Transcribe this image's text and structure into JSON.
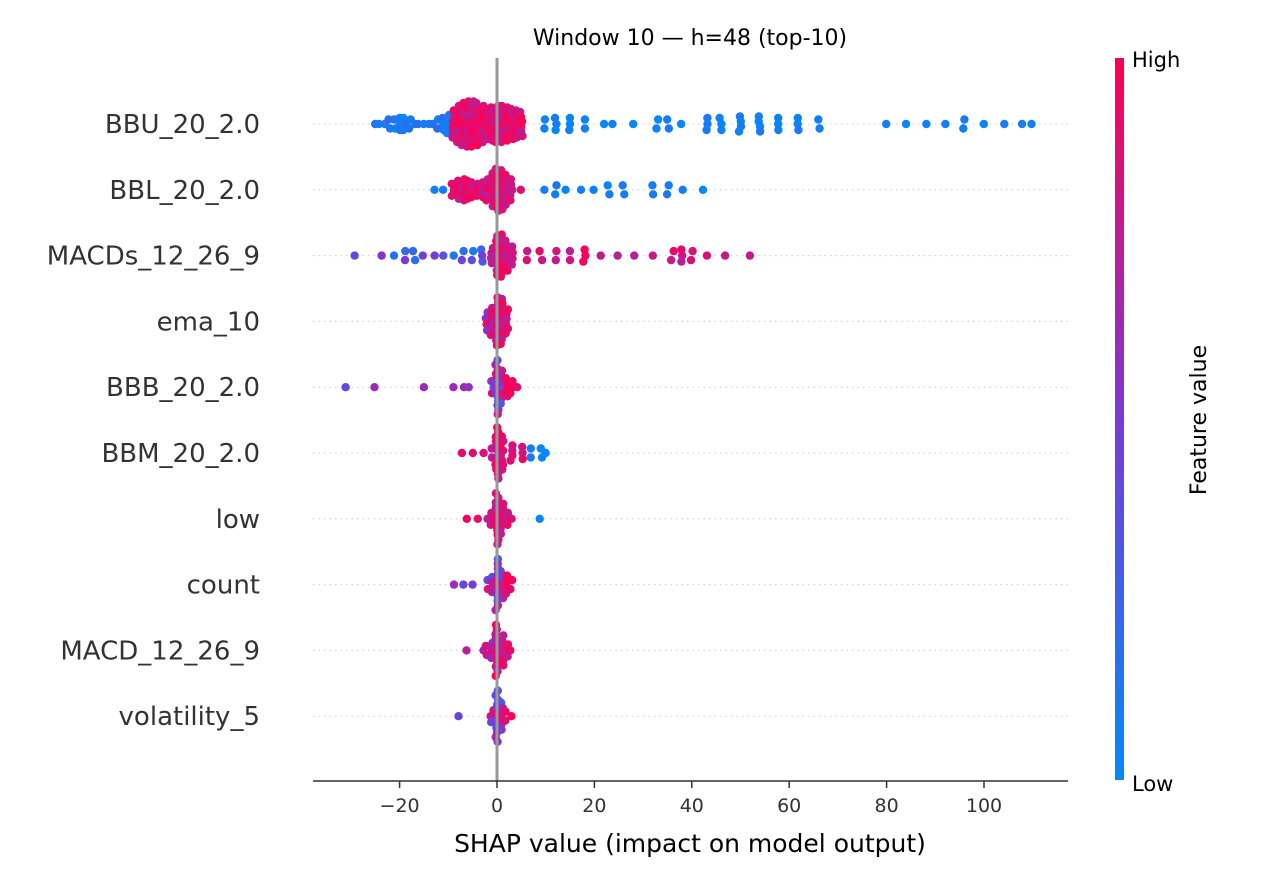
{
  "chart_data": {
    "type": "scatter",
    "title": "Window 10 — h=48 (top-10)",
    "xlabel": "SHAP value (impact on model output)",
    "xlim": [
      -38,
      119
    ],
    "xticks": [
      -20,
      0,
      20,
      40,
      60,
      80,
      100
    ],
    "xtick_labels": [
      "−20",
      "0",
      "20",
      "40",
      "60",
      "80",
      "100"
    ],
    "grid": false,
    "zero_line": 0,
    "colorbar": {
      "label": "Feature value",
      "high_label": "High",
      "low_label": "Low",
      "low_color": "#008bfb",
      "high_color": "#ff0052"
    },
    "features": [
      {
        "name": "BBU_20_2.0",
        "points": [
          [
            -25,
            0.05
          ],
          [
            -24,
            0.1
          ],
          [
            -23,
            0.1
          ],
          [
            -22,
            0.15
          ],
          [
            -21,
            0.15
          ],
          [
            -20,
            0.2
          ],
          [
            -19,
            0.2
          ],
          [
            -18,
            0.15
          ],
          [
            -17,
            0.1
          ],
          [
            -16,
            0.1
          ],
          [
            -15,
            0.1
          ],
          [
            -14,
            0.05
          ],
          [
            -13,
            0.05
          ],
          [
            -12,
            0.15
          ],
          [
            -11,
            0.2
          ],
          [
            -10,
            0.3
          ],
          [
            -9,
            0.45
          ],
          [
            -8,
            0.6
          ],
          [
            -7,
            0.7
          ],
          [
            -6,
            0.75
          ],
          [
            -5,
            0.75
          ],
          [
            -4,
            0.7
          ],
          [
            -3,
            0.6
          ],
          [
            -2,
            0.5
          ],
          [
            -1,
            0.55
          ],
          [
            0,
            0.6
          ],
          [
            1,
            0.6
          ],
          [
            2,
            0.55
          ],
          [
            3,
            0.5
          ],
          [
            4,
            0.45
          ],
          [
            5,
            0.4
          ],
          [
            10,
            0.15
          ],
          [
            12,
            0.2
          ],
          [
            15,
            0.2
          ],
          [
            18,
            0.15
          ],
          [
            22,
            0.1
          ],
          [
            24,
            0.1
          ],
          [
            28,
            0.1
          ],
          [
            33,
            0.15
          ],
          [
            35,
            0.15
          ],
          [
            38,
            0.1
          ],
          [
            43,
            0.2
          ],
          [
            46,
            0.2
          ],
          [
            50,
            0.25
          ],
          [
            54,
            0.25
          ],
          [
            58,
            0.2
          ],
          [
            62,
            0.2
          ],
          [
            66,
            0.15
          ],
          [
            80,
            0.1
          ],
          [
            84,
            0.1
          ],
          [
            88,
            0.1
          ],
          [
            92,
            0.1
          ],
          [
            96,
            0.15
          ],
          [
            100,
            0.1
          ],
          [
            104,
            0.1
          ],
          [
            108,
            0.1
          ],
          [
            110,
            0.1
          ]
        ]
      },
      {
        "name": "BBL_20_2.0",
        "points": [
          [
            -13,
            0.05
          ],
          [
            -11,
            0.05
          ],
          [
            -9,
            0.2
          ],
          [
            -8,
            0.3
          ],
          [
            -7,
            0.35
          ],
          [
            -6,
            0.3
          ],
          [
            -5,
            0.25
          ],
          [
            -4,
            0.2
          ],
          [
            -3,
            0.25
          ],
          [
            -2,
            0.35
          ],
          [
            -1,
            0.55
          ],
          [
            0,
            0.7
          ],
          [
            1,
            0.65
          ],
          [
            2,
            0.5
          ],
          [
            3,
            0.35
          ],
          [
            5,
            0.1
          ],
          [
            10,
            0.1
          ],
          [
            12,
            0.15
          ],
          [
            14,
            0.1
          ],
          [
            17,
            0.05
          ],
          [
            20,
            0.05
          ],
          [
            23,
            0.15
          ],
          [
            26,
            0.15
          ],
          [
            32,
            0.15
          ],
          [
            35,
            0.15
          ],
          [
            38,
            0.1
          ],
          [
            42,
            0.1
          ]
        ]
      },
      {
        "name": "MACDs_12_26_9",
        "points": [
          [
            -29,
            0.05
          ],
          [
            -24,
            0.05
          ],
          [
            -21,
            0.1
          ],
          [
            -19,
            0.15
          ],
          [
            -17,
            0.15
          ],
          [
            -15,
            0.1
          ],
          [
            -13,
            0.1
          ],
          [
            -11,
            0.05
          ],
          [
            -9,
            0.1
          ],
          [
            -7,
            0.15
          ],
          [
            -5,
            0.15
          ],
          [
            -3,
            0.2
          ],
          [
            -1,
            0.25
          ],
          [
            0,
            0.65
          ],
          [
            1,
            0.7
          ],
          [
            2,
            0.5
          ],
          [
            3,
            0.3
          ],
          [
            6,
            0.15
          ],
          [
            9,
            0.15
          ],
          [
            12,
            0.15
          ],
          [
            15,
            0.15
          ],
          [
            18,
            0.2
          ],
          [
            21,
            0.1
          ],
          [
            25,
            0.1
          ],
          [
            28,
            0.1
          ],
          [
            32,
            0.05
          ],
          [
            36,
            0.15
          ],
          [
            38,
            0.2
          ],
          [
            40,
            0.15
          ],
          [
            43,
            0.1
          ],
          [
            47,
            0.05
          ],
          [
            52,
            0.05
          ]
        ]
      },
      {
        "name": "ema_10",
        "points": [
          [
            -2,
            0.3
          ],
          [
            -1,
            0.45
          ],
          [
            0,
            0.8
          ],
          [
            1,
            0.75
          ],
          [
            2,
            0.4
          ]
        ]
      },
      {
        "name": "BBB_20_2.0",
        "points": [
          [
            -31,
            0.05
          ],
          [
            -25,
            0.05
          ],
          [
            -15,
            0.05
          ],
          [
            -9,
            0.1
          ],
          [
            -7,
            0.05
          ],
          [
            -6,
            0.05
          ],
          [
            -1,
            0.2
          ],
          [
            0,
            0.9
          ],
          [
            1,
            0.55
          ],
          [
            2,
            0.3
          ],
          [
            3,
            0.2
          ],
          [
            4,
            0.1
          ]
        ]
      },
      {
        "name": "BBM_20_2.0",
        "points": [
          [
            -7,
            0.05
          ],
          [
            -5,
            0.05
          ],
          [
            -3,
            0.05
          ],
          [
            -1,
            0.15
          ],
          [
            0,
            0.85
          ],
          [
            1,
            0.55
          ],
          [
            3,
            0.25
          ],
          [
            5,
            0.2
          ],
          [
            7,
            0.15
          ],
          [
            9,
            0.15
          ],
          [
            10,
            0.1
          ]
        ]
      },
      {
        "name": "low",
        "points": [
          [
            -6,
            0.05
          ],
          [
            -4,
            0.05
          ],
          [
            -2,
            0.1
          ],
          [
            -1,
            0.2
          ],
          [
            0,
            0.85
          ],
          [
            1,
            0.5
          ],
          [
            2,
            0.2
          ],
          [
            3,
            0.1
          ],
          [
            9,
            0.05
          ]
        ]
      },
      {
        "name": "count",
        "points": [
          [
            -9,
            0.1
          ],
          [
            -7,
            0.1
          ],
          [
            -5,
            0.1
          ],
          [
            -2,
            0.15
          ],
          [
            -1,
            0.25
          ],
          [
            0,
            0.85
          ],
          [
            1,
            0.45
          ],
          [
            2,
            0.3
          ],
          [
            3,
            0.15
          ]
        ]
      },
      {
        "name": "MACD_12_26_9",
        "points": [
          [
            -6,
            0.05
          ],
          [
            -3,
            0.1
          ],
          [
            -2,
            0.15
          ],
          [
            -1,
            0.25
          ],
          [
            0,
            0.85
          ],
          [
            1,
            0.5
          ],
          [
            2,
            0.2
          ],
          [
            3,
            0.1
          ]
        ]
      },
      {
        "name": "volatility_5",
        "points": [
          [
            -8,
            0.05
          ],
          [
            -1,
            0.2
          ],
          [
            0,
            0.85
          ],
          [
            1,
            0.45
          ],
          [
            2,
            0.15
          ],
          [
            3,
            0.1
          ]
        ]
      }
    ]
  }
}
